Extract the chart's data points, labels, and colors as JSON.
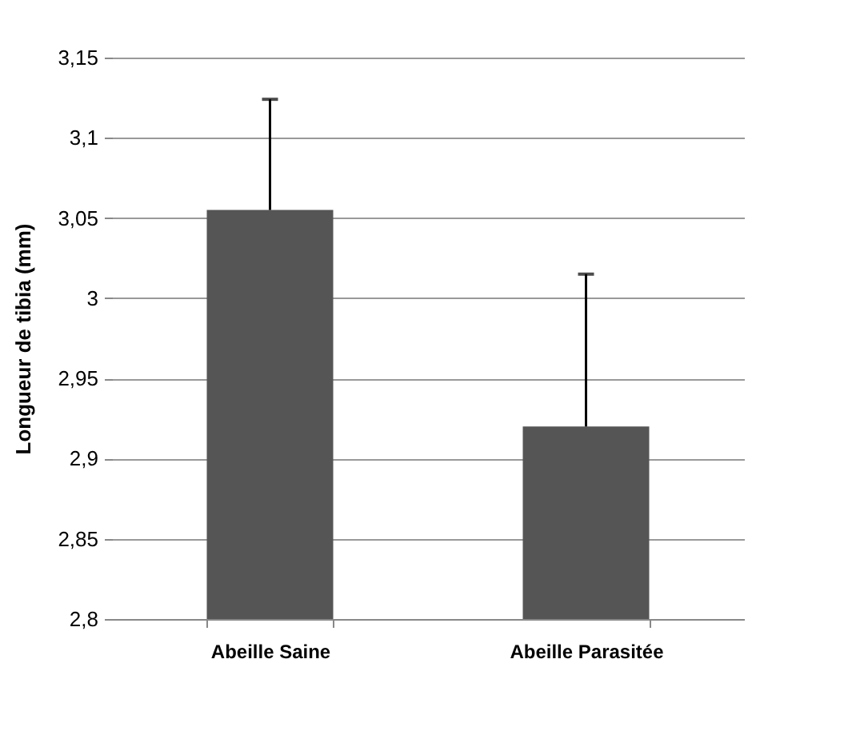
{
  "chart_data": {
    "type": "bar",
    "ylabel": "Longueur de tibia (mm)",
    "categories": [
      "Abeille Saine",
      "Abeille Parasitée"
    ],
    "values": [
      3.055,
      2.92
    ],
    "errors": [
      [
        3.055,
        3.124
      ],
      [
        2.92,
        3.015
      ]
    ],
    "color": "#555555",
    "ylim": [
      2.8,
      3.15
    ],
    "yticks": [
      {
        "value": 2.8,
        "label": "2,8"
      },
      {
        "value": 2.85,
        "label": "2,85"
      },
      {
        "value": 2.9,
        "label": "2,9"
      },
      {
        "value": 2.95,
        "label": "2,95"
      },
      {
        "value": 3,
        "label": "3"
      },
      {
        "value": 3.05,
        "label": "3,05"
      },
      {
        "value": 3.1,
        "label": "3,1"
      },
      {
        "value": 3.15,
        "label": "3,15"
      }
    ],
    "grid": "y"
  }
}
